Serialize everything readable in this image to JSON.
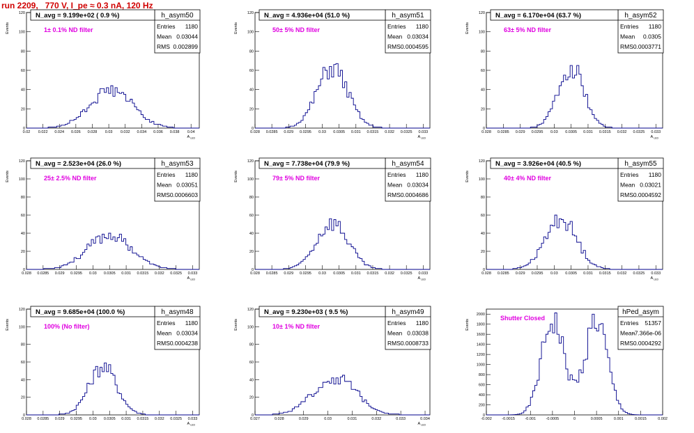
{
  "run_title": "run 2209,   770 V, I_pe ≈ 0.3 nA, 120 Hz",
  "colors": {
    "hist": "#00008b",
    "label": "#e000e0",
    "title": "#d00000",
    "axis": "#000000"
  },
  "stats_labels": {
    "entries": "Entries",
    "mean": "Mean",
    "rms": "RMS"
  },
  "chart_data": [
    {
      "type": "histogram",
      "name": "h_asym50",
      "header": "N_avg = 9.199e+02 ( 0.9 %)",
      "annotation": "1± 0.1% ND filter",
      "entries": "1180",
      "mean": "0.03044",
      "rms": "0.002899",
      "ylabel": "Events",
      "xlabel": "A_{LED}",
      "xlim": [
        0.02,
        0.041
      ],
      "ylim": [
        0,
        120
      ],
      "yticks": [
        0,
        20,
        40,
        60,
        80,
        100,
        120
      ],
      "xticks": [
        0.02,
        0.022,
        0.024,
        0.026,
        0.028,
        0.03,
        0.032,
        0.034,
        0.036,
        0.038,
        0.04
      ],
      "xticklabels": [
        "0.02",
        "0.022",
        "0.024",
        "0.026",
        "0.028",
        "0.03",
        "0.032",
        "0.034",
        "0.036",
        "0.038",
        "0.04"
      ],
      "shape": {
        "mu": 0.0303,
        "sigma": 0.0026,
        "peak": 40,
        "seed": 50
      }
    },
    {
      "type": "histogram",
      "name": "h_asym51",
      "header": "N_avg = 4.936e+04 (51.0 %)",
      "annotation": "50± 5% ND filter",
      "entries": "1180",
      "mean": "0.03034",
      "rms": "0.0004595",
      "ylabel": "Events",
      "xlabel": "A_{LED}",
      "xlim": [
        0.028,
        0.0332
      ],
      "ylim": [
        0,
        120
      ],
      "yticks": [
        0,
        20,
        40,
        60,
        80,
        100,
        120
      ],
      "xticks": [
        0.028,
        0.0285,
        0.029,
        0.0295,
        0.03,
        0.0305,
        0.031,
        0.0315,
        0.032,
        0.0325,
        0.033
      ],
      "xticklabels": [
        "0.028",
        "0.0285",
        "0.029",
        "0.0295",
        "0.03",
        "0.0305",
        "0.031",
        "0.0315",
        "0.032",
        "0.0325",
        "0.033"
      ],
      "shape": {
        "mu": 0.0303,
        "sigma": 0.00046,
        "peak": 62,
        "seed": 51
      }
    },
    {
      "type": "histogram",
      "name": "h_asym52",
      "header": "N_avg = 6.170e+04 (63.7 %)",
      "annotation": "63± 5% ND filter",
      "entries": "1180",
      "mean": "0.0305",
      "rms": "0.0003771",
      "ylabel": "Events",
      "xlabel": "A_{LED}",
      "xlim": [
        0.028,
        0.0332
      ],
      "ylim": [
        0,
        120
      ],
      "yticks": [
        0,
        20,
        40,
        60,
        80,
        100,
        120
      ],
      "xticks": [
        0.028,
        0.0285,
        0.029,
        0.0295,
        0.03,
        0.0305,
        0.031,
        0.0315,
        0.032,
        0.0325,
        0.033
      ],
      "xticklabels": [
        "0.028",
        "0.0285",
        "0.029",
        "0.0295",
        "0.03",
        "0.0305",
        "0.031",
        "0.0315",
        "0.032",
        "0.0325",
        "0.033"
      ],
      "shape": {
        "mu": 0.0305,
        "sigma": 0.00038,
        "peak": 64,
        "seed": 52
      }
    },
    {
      "type": "histogram",
      "name": "h_asym53",
      "header": "N_avg = 2.523e+04 (26.0 %)",
      "annotation": "25± 2.5% ND filter",
      "entries": "1180",
      "mean": "0.03051",
      "rms": "0.0006603",
      "ylabel": "Events",
      "xlabel": "A_{LED}",
      "xlim": [
        0.028,
        0.0332
      ],
      "ylim": [
        0,
        120
      ],
      "yticks": [
        0,
        20,
        40,
        60,
        80,
        100,
        120
      ],
      "xticks": [
        0.028,
        0.0285,
        0.029,
        0.0295,
        0.03,
        0.0305,
        0.031,
        0.0315,
        0.032,
        0.0325,
        0.033
      ],
      "xticklabels": [
        "0.028",
        "0.0285",
        "0.029",
        "0.0295",
        "0.03",
        "0.0305",
        "0.031",
        "0.0315",
        "0.032",
        "0.0325",
        "0.033"
      ],
      "shape": {
        "mu": 0.0305,
        "sigma": 0.00066,
        "peak": 38,
        "seed": 53
      }
    },
    {
      "type": "histogram",
      "name": "h_asym54",
      "header": "N_avg = 7.738e+04 (79.9 %)",
      "annotation": "79± 5% ND filter",
      "entries": "1180",
      "mean": "0.03034",
      "rms": "0.0004686",
      "ylabel": "Events",
      "xlabel": "A_{LED}",
      "xlim": [
        0.028,
        0.0332
      ],
      "ylim": [
        0,
        120
      ],
      "yticks": [
        0,
        20,
        40,
        60,
        80,
        100,
        120
      ],
      "xticks": [
        0.028,
        0.0285,
        0.029,
        0.0295,
        0.03,
        0.0305,
        0.031,
        0.0315,
        0.032,
        0.0325,
        0.033
      ],
      "xticklabels": [
        "0.028",
        "0.0285",
        "0.029",
        "0.0295",
        "0.03",
        "0.0305",
        "0.031",
        "0.0315",
        "0.032",
        "0.0325",
        "0.033"
      ],
      "shape": {
        "mu": 0.0303,
        "sigma": 0.00047,
        "peak": 52,
        "seed": 54
      }
    },
    {
      "type": "histogram",
      "name": "h_asym55",
      "header": "N_avg = 3.926e+04 (40.5 %)",
      "annotation": "40± 4% ND filter",
      "entries": "1180",
      "mean": "0.03021",
      "rms": "0.0004592",
      "ylabel": "Events",
      "xlabel": "A_{LED}",
      "xlim": [
        0.028,
        0.0332
      ],
      "ylim": [
        0,
        120
      ],
      "yticks": [
        0,
        20,
        40,
        60,
        80,
        100,
        120
      ],
      "xticks": [
        0.028,
        0.0285,
        0.029,
        0.0295,
        0.03,
        0.0305,
        0.031,
        0.0315,
        0.032,
        0.0325,
        0.033
      ],
      "xticklabels": [
        "0.028",
        "0.0285",
        "0.029",
        "0.0295",
        "0.03",
        "0.0305",
        "0.031",
        "0.0315",
        "0.032",
        "0.0325",
        "0.033"
      ],
      "shape": {
        "mu": 0.0302,
        "sigma": 0.00046,
        "peak": 56,
        "seed": 55
      }
    },
    {
      "type": "histogram",
      "name": "h_asym48",
      "header": "N_avg = 9.685e+04 (100.0 %)",
      "annotation": "100% (No filter)",
      "entries": "1180",
      "mean": "0.03034",
      "rms": "0.0004238",
      "ylabel": "Events",
      "xlabel": "A_{LED}",
      "xlim": [
        0.028,
        0.0332
      ],
      "ylim": [
        0,
        120
      ],
      "yticks": [
        0,
        20,
        40,
        60,
        80,
        100,
        120
      ],
      "xticks": [
        0.028,
        0.0285,
        0.029,
        0.0295,
        0.03,
        0.0305,
        0.031,
        0.0315,
        0.032,
        0.0325,
        0.033
      ],
      "xticklabels": [
        "0.028",
        "0.0285",
        "0.029",
        "0.0295",
        "0.03",
        "0.0305",
        "0.031",
        "0.0315",
        "0.032",
        "0.0325",
        "0.033"
      ],
      "shape": {
        "mu": 0.0303,
        "sigma": 0.00042,
        "peak": 55,
        "seed": 48
      }
    },
    {
      "type": "histogram",
      "name": "h_asym49",
      "header": "N_avg = 9.230e+03 ( 9.5 %)",
      "annotation": "10± 1% ND filter",
      "entries": "1180",
      "mean": "0.03038",
      "rms": "0.0008733",
      "ylabel": "Events",
      "xlabel": "A_{LED}",
      "xlim": [
        0.027,
        0.0342
      ],
      "ylim": [
        0,
        120
      ],
      "yticks": [
        0,
        20,
        40,
        60,
        80,
        100,
        120
      ],
      "xticks": [
        0.027,
        0.028,
        0.029,
        0.03,
        0.031,
        0.032,
        0.033,
        0.034
      ],
      "xticklabels": [
        "0.027",
        "0.028",
        "0.029",
        "0.03",
        "0.031",
        "0.032",
        "0.033",
        "0.034"
      ],
      "shape": {
        "mu": 0.0303,
        "sigma": 0.00088,
        "peak": 42,
        "seed": 49
      }
    },
    {
      "type": "histogram",
      "name": "hPed_asym",
      "header": "",
      "annotation": "Shutter Closed",
      "entries": "51357",
      "mean": "-7.366e-06",
      "rms": "0.0004292",
      "ylabel": "Events",
      "xlabel": "",
      "xlim": [
        -0.002,
        0.002
      ],
      "ylim": [
        0,
        2100
      ],
      "yticks": [
        0,
        200,
        400,
        600,
        800,
        1000,
        1200,
        1400,
        1600,
        1800,
        2000
      ],
      "xticks": [
        -0.002,
        -0.0015,
        -0.001,
        -0.0005,
        0,
        0.0005,
        0.001,
        0.0015,
        0.002
      ],
      "xticklabels": [
        "-0.002",
        "-0.0015",
        "-0.001",
        "-0.0005",
        "0",
        "0.0005",
        "0.001",
        "0.0015",
        "0.002"
      ],
      "shape": {
        "bimodal": true,
        "mu": 0.0005,
        "sigma": 0.00025,
        "peak": 1800,
        "seed": 1
      }
    }
  ]
}
